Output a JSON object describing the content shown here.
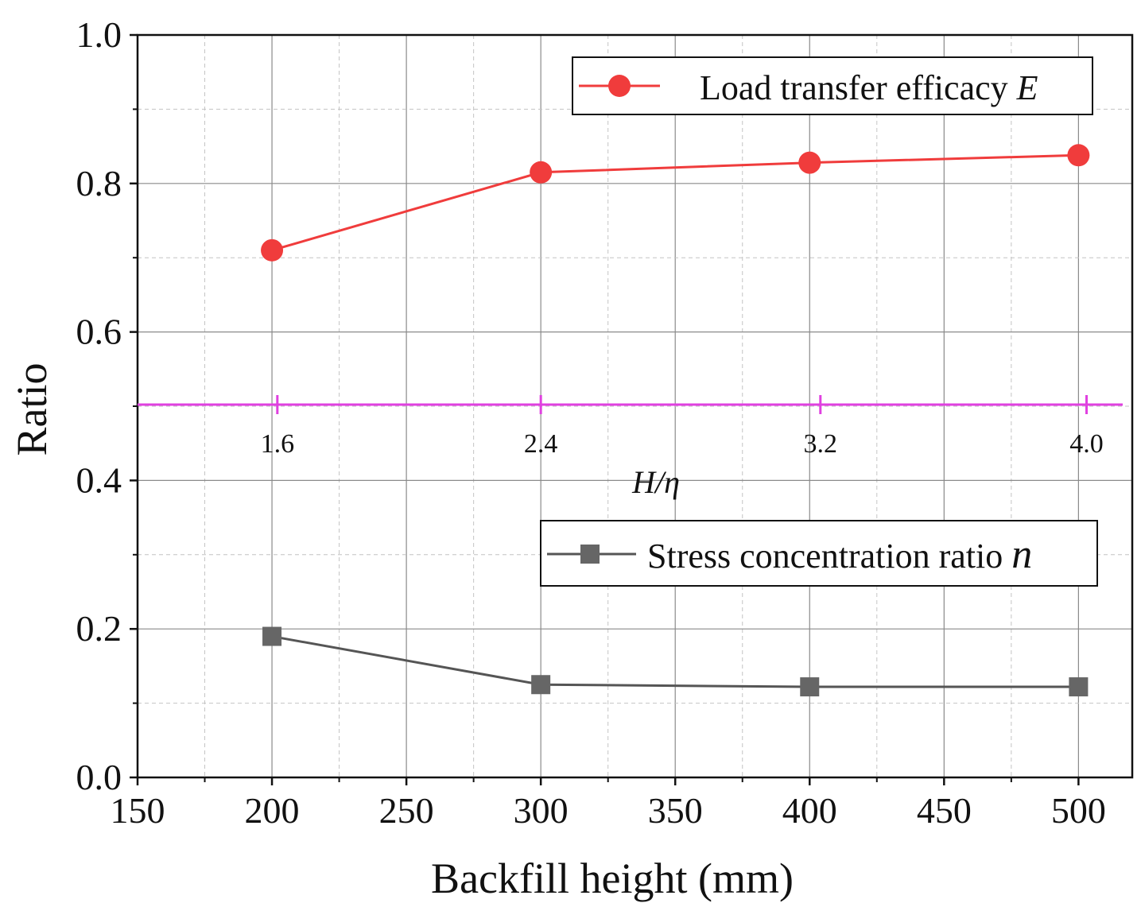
{
  "chart_data": {
    "type": "line",
    "title": "",
    "xlabel": "Backfill height (mm)",
    "ylabel": "Ratio",
    "xlim": [
      150,
      520
    ],
    "ylim": [
      0.0,
      1.0
    ],
    "x_ticks": [
      "150",
      "200",
      "250",
      "300",
      "350",
      "400",
      "450",
      "500"
    ],
    "y_ticks": [
      "0.0",
      "0.2",
      "0.4",
      "0.6",
      "0.8",
      "1.0"
    ],
    "grid": true,
    "series": [
      {
        "name": "Load transfer efficacy",
        "symbol": "E",
        "marker": "circle",
        "color": "#f03c3c",
        "x": [
          200,
          300,
          400,
          500
        ],
        "values": [
          0.71,
          0.815,
          0.828,
          0.838
        ]
      },
      {
        "name": "Stress concentration ratio",
        "symbol": "n",
        "marker": "square",
        "color": "#666666",
        "x": [
          200,
          300,
          400,
          500
        ],
        "values": [
          0.19,
          0.125,
          0.122,
          0.122
        ]
      }
    ],
    "secondary_axis": {
      "label_main": "H/",
      "label_symbol": "η",
      "color": "#e040e0",
      "at_y": 0.5,
      "ticks": [
        {
          "label": "1.6",
          "x": 202
        },
        {
          "label": "2.4",
          "x": 300
        },
        {
          "label": "3.2",
          "x": 404
        },
        {
          "label": "4.0",
          "x": 503
        }
      ]
    }
  }
}
